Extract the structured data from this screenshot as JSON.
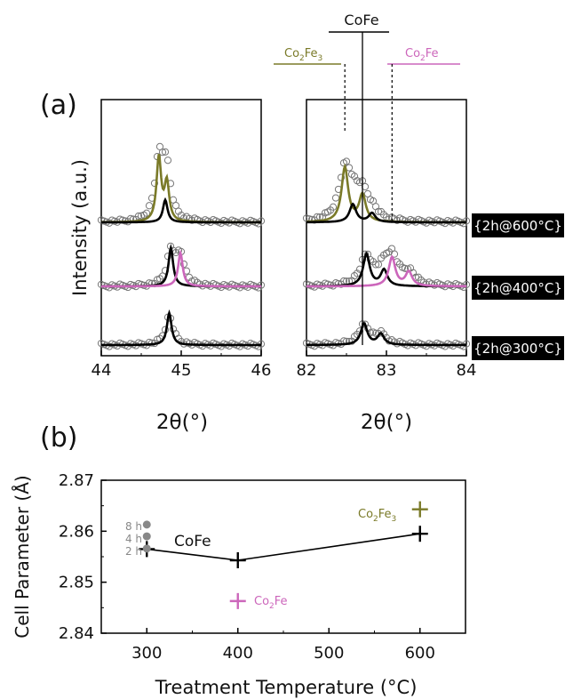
{
  "colors": {
    "co2fe3": "#7a7a28",
    "co2fe": "#cc66bb",
    "cofe": "#000000",
    "marker": "#777777",
    "duration_dots": "#888888"
  },
  "panel_a": {
    "label": "(a)",
    "ylabel": "Intensity (a.u.)",
    "left_xlabel": "2θ(°)",
    "right_xlabel": "2θ(°)",
    "phase_labels": {
      "cofe": "CoFe",
      "co2fe3": "Co2Fe3",
      "co2fe": "Co2Fe"
    },
    "conditions": [
      "{2h@600°C}",
      "{2h@400°C}",
      "{2h@300°C}"
    ]
  },
  "panel_b": {
    "label": "(b)",
    "duration_labels": [
      "8 h",
      "4 h",
      "2 h"
    ],
    "series_labels": {
      "cofe": "CoFe",
      "co2fe3": "Co2Fe3",
      "co2fe": "Co2Fe"
    }
  },
  "chart_data": [
    {
      "type": "line",
      "panel": "a-left",
      "xlabel": "2θ(°)",
      "ylabel": "Intensity (a.u.)",
      "xlim": [
        44,
        46
      ],
      "xticks": [
        44,
        45,
        46
      ],
      "traces": [
        {
          "condition": "{2h@600°C}",
          "phases": [
            {
              "name": "Co2Fe3",
              "color": "#7a7a28",
              "peaks": [
                [
                  44.72,
                  1.0
                ],
                [
                  44.82,
                  0.6
                ]
              ]
            },
            {
              "name": "CoFe",
              "color": "#000000",
              "peaks": [
                [
                  44.8,
                  0.35
                ]
              ]
            }
          ],
          "data_peak": 44.72
        },
        {
          "condition": "{2h@400°C}",
          "phases": [
            {
              "name": "CoFe",
              "color": "#000000",
              "peaks": [
                [
                  44.87,
                  0.6
                ]
              ]
            },
            {
              "name": "Co2Fe",
              "color": "#cc66bb",
              "peaks": [
                [
                  44.99,
                  0.52
                ]
              ]
            }
          ],
          "data_peak": 44.95
        },
        {
          "condition": "{2h@300°C}",
          "phases": [
            {
              "name": "CoFe",
              "color": "#000000",
              "peaks": [
                [
                  44.85,
                  0.5
                ]
              ]
            }
          ],
          "data_peak": 44.85
        }
      ]
    },
    {
      "type": "line",
      "panel": "a-right",
      "xlabel": "2θ(°)",
      "xlim": [
        82,
        84
      ],
      "xticks": [
        82,
        83,
        84
      ],
      "reference_lines": {
        "CoFe": 82.7,
        "Co2Fe3": 82.48,
        "Co2Fe": 83.07
      },
      "traces": [
        {
          "condition": "{2h@600°C}",
          "phases": [
            {
              "name": "Co2Fe3",
              "color": "#7a7a28",
              "peaks": [
                [
                  82.48,
                  0.85
                ],
                [
                  82.7,
                  0.42
                ]
              ]
            },
            {
              "name": "CoFe",
              "color": "#000000",
              "peaks": [
                [
                  82.58,
                  0.28
                ],
                [
                  82.82,
                  0.14
                ]
              ]
            }
          ]
        },
        {
          "condition": "{2h@400°C}",
          "phases": [
            {
              "name": "CoFe",
              "color": "#000000",
              "peaks": [
                [
                  82.75,
                  0.5
                ],
                [
                  82.97,
                  0.25
                ]
              ]
            },
            {
              "name": "Co2Fe",
              "color": "#cc66bb",
              "peaks": [
                [
                  83.07,
                  0.45
                ],
                [
                  83.28,
                  0.22
                ]
              ]
            }
          ]
        },
        {
          "condition": "{2h@300°C}",
          "phases": [
            {
              "name": "CoFe",
              "color": "#000000",
              "peaks": [
                [
                  82.72,
                  0.33
                ],
                [
                  82.93,
                  0.17
                ]
              ]
            }
          ]
        }
      ]
    },
    {
      "type": "scatter",
      "panel": "b",
      "xlabel": "Treatment Temperature (°C)",
      "ylabel": "Cell Parameter (Å)",
      "xlim": [
        250,
        650
      ],
      "ylim": [
        2.84,
        2.87
      ],
      "xticks": [
        300,
        400,
        500,
        600
      ],
      "yticks": [
        2.84,
        2.85,
        2.86,
        2.87
      ],
      "series": [
        {
          "name": "CoFe",
          "color": "#000000",
          "marker": "plus",
          "line": true,
          "x": [
            300,
            400,
            600
          ],
          "y": [
            2.8565,
            2.8543,
            2.8595
          ]
        },
        {
          "name": "Co2Fe3",
          "color": "#7a7a28",
          "marker": "plus",
          "x": [
            600
          ],
          "y": [
            2.8643
          ]
        },
        {
          "name": "Co2Fe",
          "color": "#cc66bb",
          "marker": "plus",
          "x": [
            400
          ],
          "y": [
            2.8463
          ]
        },
        {
          "name": "8 h",
          "color": "#888888",
          "marker": "circle",
          "x": [
            300
          ],
          "y": [
            2.8613
          ]
        },
        {
          "name": "4 h",
          "color": "#888888",
          "marker": "circle",
          "x": [
            300
          ],
          "y": [
            2.859
          ]
        },
        {
          "name": "2 h",
          "color": "#888888",
          "marker": "circle",
          "x": [
            300
          ],
          "y": [
            2.8566
          ]
        }
      ]
    }
  ]
}
